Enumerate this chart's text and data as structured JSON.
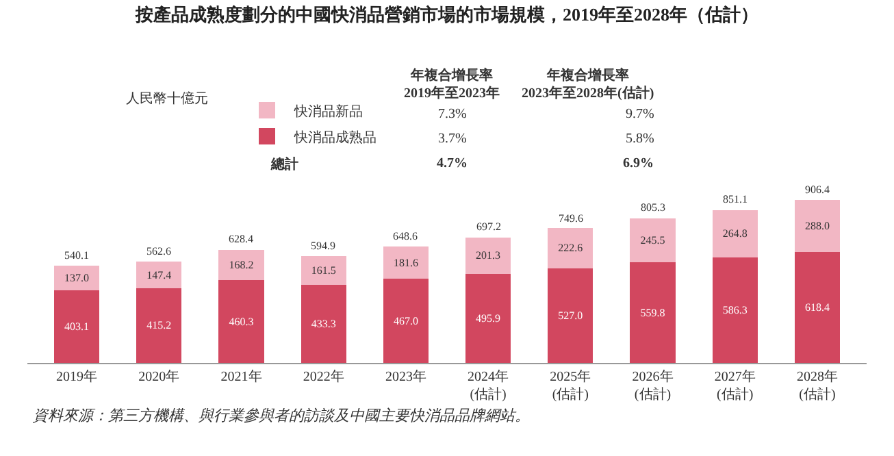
{
  "chart_data": {
    "type": "bar",
    "stacked": true,
    "title": "按產品成熟度劃分的中國快消品營銷市場的市場規模，2019年至2028年（估計）",
    "categories": [
      "2019年",
      "2020年",
      "2021年",
      "2022年",
      "2023年",
      "2024年\n(估計)",
      "2025年\n(估計)",
      "2026年\n(估計)",
      "2027年\n(估計)",
      "2028年\n(估計)"
    ],
    "series": [
      {
        "name": "快消品成熟品",
        "color": "#d2475f",
        "values": [
          403.1,
          415.2,
          460.3,
          433.3,
          467.0,
          495.9,
          527.0,
          559.8,
          586.3,
          618.4
        ],
        "value_labels": [
          "403.1",
          "415.2",
          "460.3",
          "433.3",
          "467.0",
          "495.9",
          "527.0",
          "559.8",
          "586.3",
          "618.4"
        ]
      },
      {
        "name": "快消品新品",
        "color": "#f2b7c4",
        "values": [
          137.0,
          147.4,
          168.2,
          161.5,
          181.6,
          201.3,
          222.6,
          245.5,
          264.8,
          288.0
        ],
        "value_labels": [
          "137.0",
          "147.4",
          "168.2",
          "161.5",
          "181.6",
          "201.3",
          "222.6",
          "245.5",
          "264.8",
          "288.0"
        ]
      }
    ],
    "totals": [
      "540.1",
      "562.6",
      "628.4",
      "594.9",
      "648.6",
      "697.2",
      "749.6",
      "805.3",
      "851.1",
      "906.4"
    ],
    "legend": "top left",
    "annotations": [
      "年複合增長率\n2019年至2023年",
      "年複合增長率\n2023年至2028年(估計)",
      "3.7%",
      "5.8%",
      "7.3%",
      "9.7%",
      "總計",
      "4.7%",
      "6.9%",
      "資料來源：第三方機構、與行業參與者的訪談及中國主要快消品品牌網站。",
      "人民幣十億元"
    ]
  }
}
